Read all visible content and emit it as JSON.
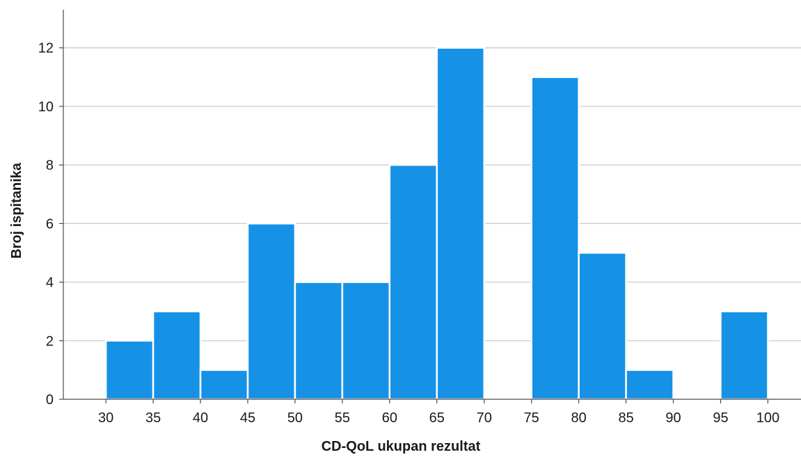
{
  "chart_data": {
    "type": "bar",
    "title": "",
    "xlabel": "CD-QoL ukupan rezultat",
    "ylabel": "Broj ispitanika",
    "bins": [
      {
        "from": 30,
        "to": 35,
        "count": 2
      },
      {
        "from": 35,
        "to": 40,
        "count": 3
      },
      {
        "from": 40,
        "to": 45,
        "count": 1
      },
      {
        "from": 45,
        "to": 50,
        "count": 6
      },
      {
        "from": 50,
        "to": 55,
        "count": 4
      },
      {
        "from": 55,
        "to": 60,
        "count": 4
      },
      {
        "from": 60,
        "to": 65,
        "count": 8
      },
      {
        "from": 65,
        "to": 70,
        "count": 12
      },
      {
        "from": 70,
        "to": 75,
        "count": 0
      },
      {
        "from": 75,
        "to": 80,
        "count": 11
      },
      {
        "from": 80,
        "to": 85,
        "count": 5
      },
      {
        "from": 85,
        "to": 90,
        "count": 1
      },
      {
        "from": 90,
        "to": 95,
        "count": 0
      },
      {
        "from": 95,
        "to": 100,
        "count": 3
      }
    ],
    "xticks": [
      "30",
      "35",
      "40",
      "45",
      "50",
      "55",
      "60",
      "65",
      "70",
      "75",
      "80",
      "85",
      "90",
      "95",
      "100"
    ],
    "yticks": [
      "0",
      "2",
      "4",
      "6",
      "8",
      "10",
      "12"
    ],
    "xlim": [
      25.5,
      103.5
    ],
    "ylim": [
      0,
      13.3
    ],
    "grid": "horizontal",
    "bar_color": "#1592e6"
  }
}
